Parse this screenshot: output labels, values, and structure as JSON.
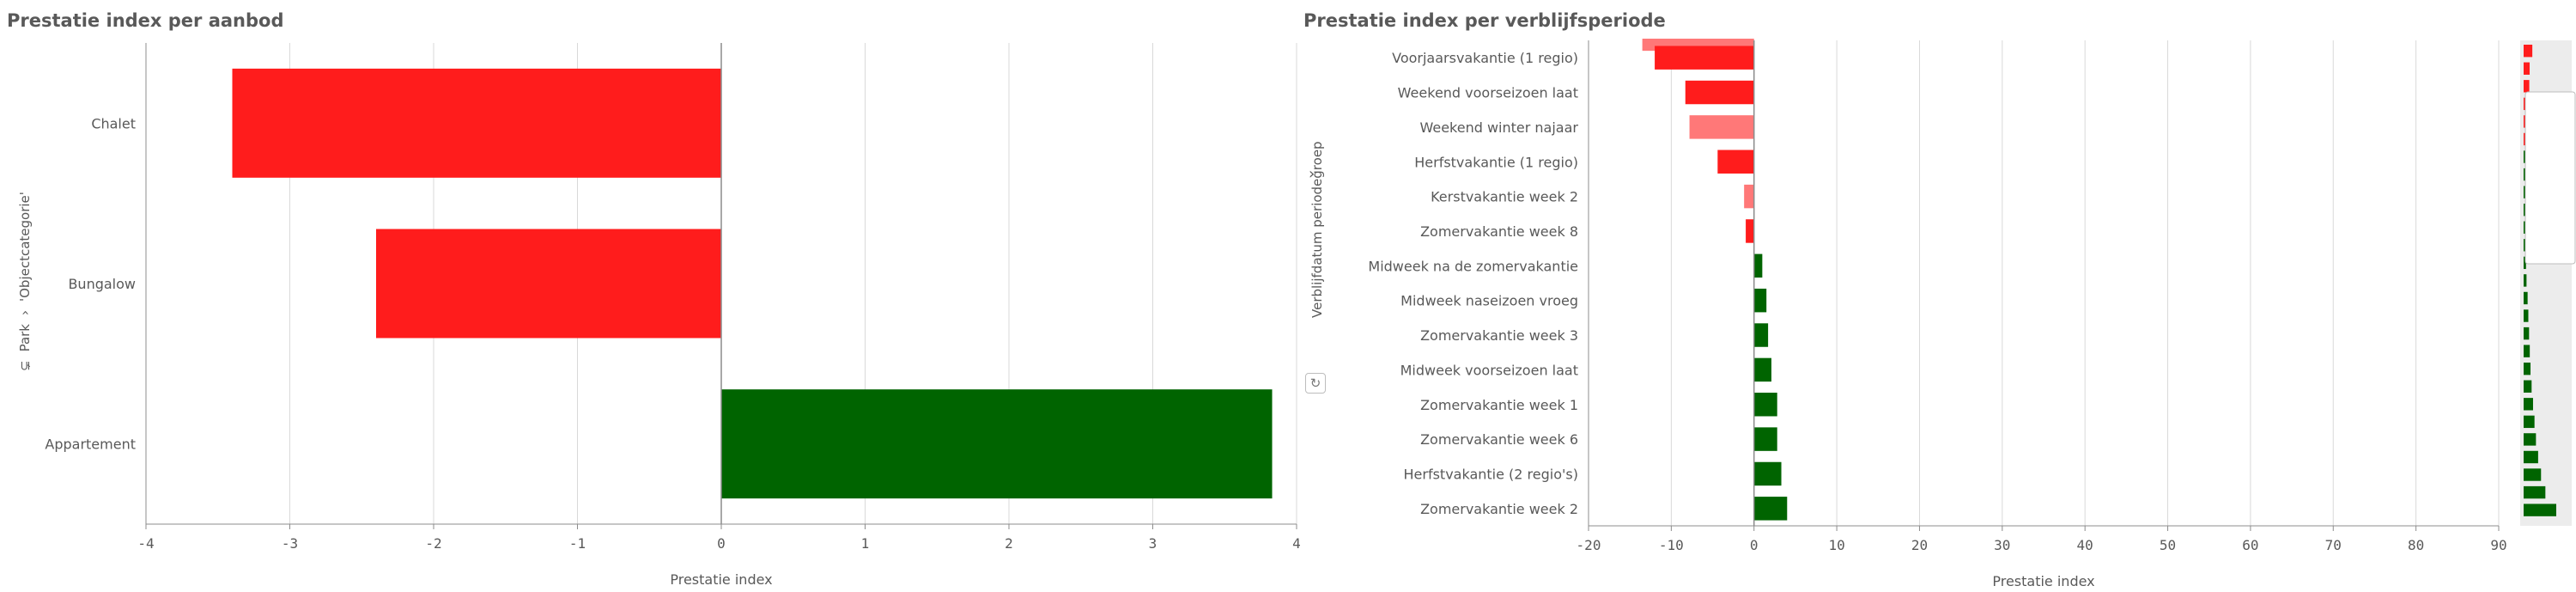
{
  "colors": {
    "negative": "#ff1c1c",
    "negative_light": "#ff7878",
    "positive": "#006400",
    "grid": "#d9d9d9",
    "scrollbar_track": "#ececec"
  },
  "icons": {
    "hierarchy": "hierarchy-icon",
    "chevron": "chevron-right-icon",
    "reset": "refresh-icon"
  },
  "left_panel": {
    "title": "Prestatie index per aanbod",
    "dim_path_part1": "Park",
    "dim_path_part2": "'Objectcategorie'",
    "chevron": "›"
  },
  "right_panel": {
    "title": "Prestatie index per verblijfsperiode",
    "dim_title": "Verblijfdatum periodegroep",
    "chevron": "›",
    "reset": "↻"
  },
  "chart_data": [
    {
      "type": "bar",
      "orientation": "horizontal",
      "title": "Prestatie index per aanbod",
      "xlabel": "Prestatie index",
      "ylabel": "Park > 'Objectcategorie'",
      "xlim": [
        -4,
        4
      ],
      "xticks": [
        "-4",
        "-3",
        "-2",
        "-1",
        "0",
        "1",
        "2",
        "3",
        "4"
      ],
      "categories": [
        "Chalet",
        "Bungalow",
        "Appartement"
      ],
      "values": [
        -3.4,
        -2.4,
        3.83
      ],
      "grid": true
    },
    {
      "type": "bar",
      "orientation": "horizontal",
      "title": "Prestatie index per verblijfsperiode",
      "xlabel": "Prestatie index",
      "ylabel": "Verblijfdatum periodegroep",
      "xlim": [
        -20,
        90
      ],
      "xticks": [
        "-20",
        "-10",
        "0",
        "10",
        "20",
        "30",
        "40",
        "50",
        "60",
        "70",
        "80",
        "90"
      ],
      "categories": [
        "Voorjaarsvakantie (1 regio)",
        "Weekend voorseizoen laat",
        "Weekend winter najaar",
        "Herfstvakantie (1 regio)",
        "Kerstvakantie week 2",
        "Zomervakantie week 8",
        "Midweek na de zomervakantie",
        "Midweek naseizoen vroeg",
        "Zomervakantie week 3",
        "Midweek voorseizoen laat",
        "Zomervakantie week 1",
        "Zomervakantie week 6",
        "Herfstvakantie (2 regio's)",
        "Zomervakantie week 2"
      ],
      "values": [
        -12,
        -8.3,
        -7.8,
        -4.4,
        -1.2,
        -1.0,
        1.0,
        1.5,
        1.7,
        2.1,
        2.8,
        2.8,
        3.3,
        4.0
      ],
      "partial_top_bar_value": -13.5,
      "grid": true,
      "mini_chart_values": [
        -12,
        -8.3,
        -7.8,
        -4.4,
        -1.2,
        -1.0,
        1.0,
        1.5,
        1.7,
        2.1,
        2.8,
        2.8,
        3.3,
        4.0,
        5.5,
        6.5,
        7.5,
        8.5,
        9.5,
        11,
        13,
        15,
        17,
        20,
        24,
        30,
        45
      ]
    }
  ]
}
